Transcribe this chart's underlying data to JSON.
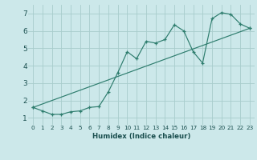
{
  "xlabel": "Humidex (Indice chaleur)",
  "ylabel": "",
  "bg_color": "#cce8ea",
  "line_color": "#2e7d6e",
  "grid_color": "#a8cccc",
  "xlim": [
    -0.5,
    23.5
  ],
  "ylim": [
    0.6,
    7.5
  ],
  "xticks": [
    0,
    1,
    2,
    3,
    4,
    5,
    6,
    7,
    8,
    9,
    10,
    11,
    12,
    13,
    14,
    15,
    16,
    17,
    18,
    19,
    20,
    21,
    22,
    23
  ],
  "yticks": [
    1,
    2,
    3,
    4,
    5,
    6,
    7
  ],
  "series1_x": [
    0,
    1,
    2,
    3,
    4,
    5,
    6,
    7,
    8,
    9,
    10,
    11,
    12,
    13,
    14,
    15,
    16,
    17,
    18,
    19,
    20,
    21,
    22,
    23
  ],
  "series1_y": [
    1.6,
    1.4,
    1.2,
    1.2,
    1.35,
    1.4,
    1.6,
    1.65,
    2.5,
    3.6,
    4.8,
    4.4,
    5.4,
    5.3,
    5.5,
    6.35,
    6.0,
    4.8,
    4.15,
    6.7,
    7.05,
    6.95,
    6.4,
    6.15
  ],
  "series2_x": [
    0,
    23
  ],
  "series2_y": [
    1.6,
    6.15
  ]
}
